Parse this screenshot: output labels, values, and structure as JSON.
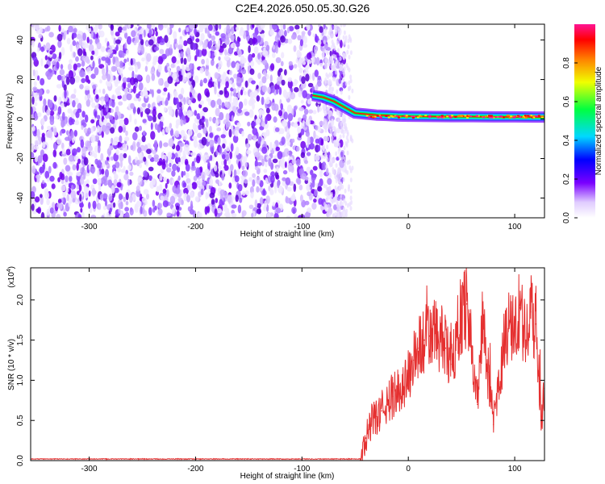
{
  "title": "C2E4.2026.050.05.30.G26",
  "colors": {
    "snr_line": "#e53030",
    "axis": "#000000",
    "colormap": [
      "#ffffff",
      "#e9dbff",
      "#7a00ff",
      "#0000ff",
      "#00d8ff",
      "#00ff40",
      "#f0ff00",
      "#ff8000",
      "#ff0000",
      "#ff1493"
    ]
  },
  "chart_data": [
    {
      "type": "heatmap",
      "name": "spectrogram",
      "xlabel": "Height of straight line (km)",
      "ylabel": "Frequency (Hz)",
      "xlim": [
        -355,
        128
      ],
      "ylim": [
        -50,
        48
      ],
      "xticks": [
        -300,
        -200,
        -100,
        0,
        100
      ],
      "yticks": [
        -40,
        -20,
        0,
        20,
        40
      ],
      "noise_region_x": [
        -355,
        -60
      ],
      "signal_ridge": {
        "x": [
          -90,
          -80,
          -70,
          -60,
          -50,
          -40,
          -30,
          -20,
          -10,
          0,
          20,
          40,
          60,
          80,
          100,
          120,
          128
        ],
        "frequency": [
          12,
          11,
          9,
          6,
          3,
          2.5,
          2,
          1.8,
          1.5,
          1.4,
          1.3,
          1.2,
          1.2,
          1.1,
          1.1,
          1.0,
          1.0
        ]
      },
      "colorbar": {
        "label": "Normalized spectral amplitude",
        "range": [
          0.0,
          1.0
        ],
        "ticks": [
          "0.0",
          "0.2",
          "0.4",
          "0.6",
          "0.8"
        ]
      }
    },
    {
      "type": "line",
      "name": "snr",
      "xlabel": "Height of straight line (km)",
      "ylabel": "SNR (10 * v/v)",
      "scale_label": "(x10",
      "scale_exp": "4",
      "scale_close": ")",
      "xlim": [
        -355,
        128
      ],
      "ylim": [
        0,
        2.4
      ],
      "xticks": [
        -300,
        -200,
        -100,
        0,
        100
      ],
      "yticks": [
        "0.0",
        "0.5",
        "1.0",
        "1.5",
        "2.0"
      ],
      "series": [
        {
          "name": "SNR",
          "x": [
            -355,
            -45,
            -40,
            -35,
            -30,
            -25,
            -20,
            -15,
            -10,
            -5,
            0,
            5,
            10,
            15,
            20,
            25,
            30,
            35,
            40,
            45,
            50,
            55,
            60,
            65,
            70,
            75,
            80,
            85,
            90,
            95,
            100,
            105,
            110,
            115,
            120,
            125,
            128
          ],
          "values": [
            0.02,
            0.02,
            0.28,
            0.45,
            0.55,
            0.62,
            0.7,
            0.8,
            0.85,
            0.95,
            1.05,
            1.25,
            1.4,
            1.5,
            1.55,
            1.58,
            1.52,
            1.4,
            1.2,
            1.5,
            1.85,
            1.95,
            1.4,
            0.7,
            1.8,
            1.1,
            0.45,
            0.9,
            1.45,
            1.7,
            1.6,
            1.9,
            1.5,
            1.85,
            1.7,
            0.5,
            0.9
          ]
        }
      ]
    }
  ]
}
